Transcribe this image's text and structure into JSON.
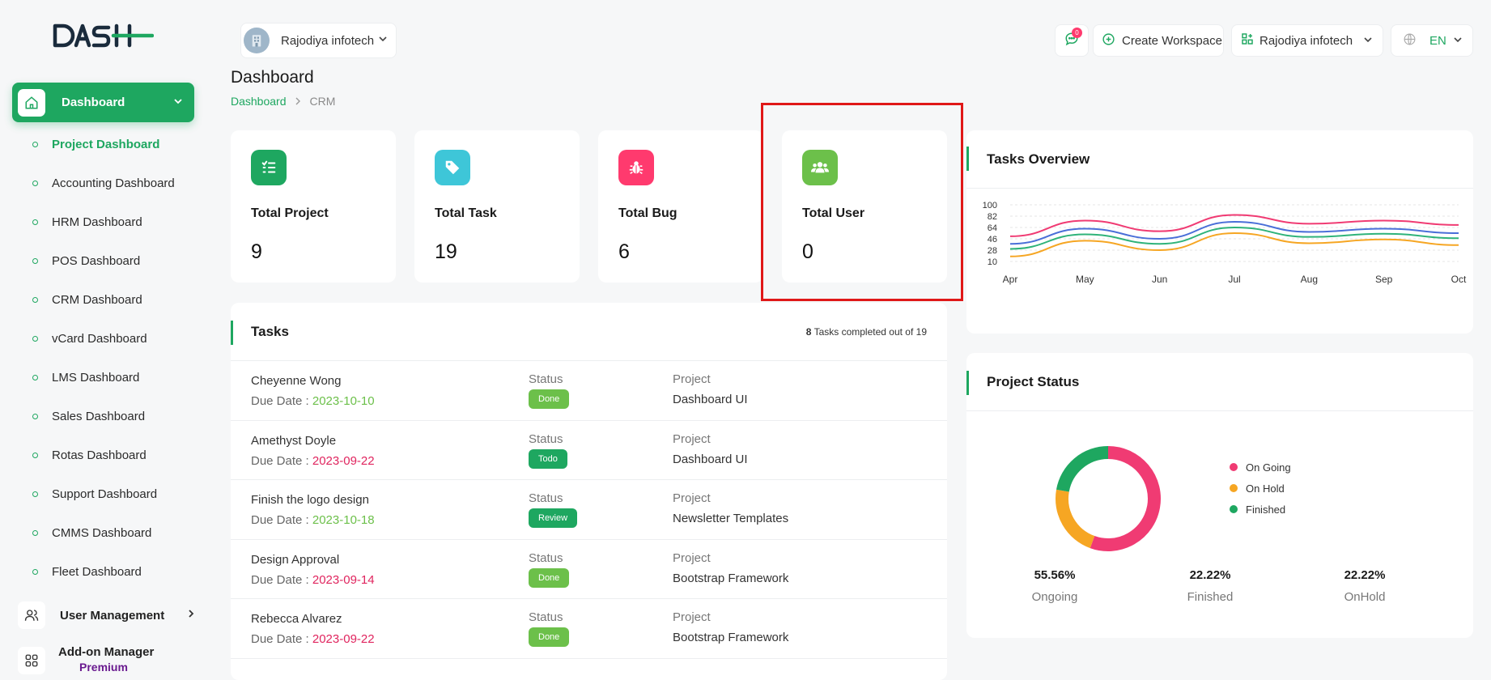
{
  "app": {
    "logo_text": "DASH"
  },
  "sidebar": {
    "active": {
      "label": "Dashboard"
    },
    "items": [
      {
        "label": "Project Dashboard",
        "active": true
      },
      {
        "label": "Accounting Dashboard"
      },
      {
        "label": "HRM Dashboard"
      },
      {
        "label": "POS Dashboard"
      },
      {
        "label": "CRM Dashboard"
      },
      {
        "label": "vCard Dashboard"
      },
      {
        "label": "LMS Dashboard"
      },
      {
        "label": "Sales Dashboard"
      },
      {
        "label": "Rotas Dashboard"
      },
      {
        "label": "Support Dashboard"
      },
      {
        "label": "CMMS Dashboard"
      },
      {
        "label": "Fleet Dashboard"
      }
    ],
    "user_management": "User Management",
    "addon": {
      "label": "Add-on Manager",
      "badge": "Premium"
    }
  },
  "header": {
    "workspace": "Rajodiya infotech",
    "chat_count": "0",
    "create_workspace": "Create Workspace",
    "workspace2": "Rajodiya infotech",
    "language": "EN"
  },
  "page": {
    "title": "Dashboard",
    "crumb1": "Dashboard",
    "crumb2": "CRM"
  },
  "stats": [
    {
      "label": "Total Project",
      "value": "9",
      "color": "#1ea760",
      "icon": "list-icon"
    },
    {
      "label": "Total Task",
      "value": "19",
      "color": "#3ec6d8",
      "icon": "tag-icon"
    },
    {
      "label": "Total Bug",
      "value": "6",
      "color": "#ff3a6e",
      "icon": "bug-icon"
    },
    {
      "label": "Total User",
      "value": "0",
      "color": "#6cc04a",
      "icon": "users-icon"
    }
  ],
  "tasks": {
    "title": "Tasks",
    "completed": "8",
    "completed_text": "Tasks completed out of 19",
    "status_label": "Status",
    "project_label": "Project",
    "due_label": "Due Date : ",
    "rows": [
      {
        "name": "Cheyenne Wong",
        "due": "2023-10-10",
        "due_color": "green",
        "status": "Done",
        "status_class": "done",
        "project": "Dashboard UI"
      },
      {
        "name": "Amethyst Doyle",
        "due": "2023-09-22",
        "due_color": "red",
        "status": "Todo",
        "status_class": "todo",
        "project": "Dashboard UI"
      },
      {
        "name": "Finish the logo design",
        "due": "2023-10-18",
        "due_color": "green",
        "status": "Review",
        "status_class": "review",
        "project": "Newsletter Templates"
      },
      {
        "name": "Design Approval",
        "due": "2023-09-14",
        "due_color": "red",
        "status": "Done",
        "status_class": "done",
        "project": "Bootstrap Framework"
      },
      {
        "name": "Rebecca Alvarez",
        "due": "2023-09-22",
        "due_color": "red",
        "status": "Done",
        "status_class": "done",
        "project": "Bootstrap Framework"
      }
    ]
  },
  "overview": {
    "title": "Tasks Overview"
  },
  "project_status": {
    "title": "Project Status",
    "legend": [
      {
        "label": "On Going",
        "color": "#f03b73"
      },
      {
        "label": "On Hold",
        "color": "#f6a623"
      },
      {
        "label": "Finished",
        "color": "#1ea760"
      }
    ],
    "percents": [
      {
        "value": "55.56%",
        "label": "Ongoing"
      },
      {
        "value": "22.22%",
        "label": "Finished"
      },
      {
        "value": "22.22%",
        "label": "OnHold"
      }
    ]
  },
  "chart_data": [
    {
      "type": "line",
      "title": "Tasks Overview",
      "x": [
        "Apr",
        "May",
        "Jun",
        "Jul",
        "Aug",
        "Sep",
        "Oct"
      ],
      "ylim": [
        10,
        100
      ],
      "yticks": [
        10,
        28,
        46,
        64,
        82,
        100
      ],
      "grid": true,
      "series": [
        {
          "values": [
            50,
            75,
            58,
            84,
            70,
            75,
            68
          ],
          "color": "#f03b73"
        },
        {
          "values": [
            38,
            62,
            46,
            73,
            57,
            62,
            55
          ],
          "color": "#4a6fd8"
        },
        {
          "values": [
            30,
            53,
            38,
            64,
            49,
            54,
            47
          ],
          "color": "#2fb37a"
        },
        {
          "values": [
            18,
            43,
            28,
            55,
            39,
            45,
            36
          ],
          "color": "#f6a623"
        }
      ]
    },
    {
      "type": "pie",
      "title": "Project Status",
      "categories": [
        "On Going",
        "On Hold",
        "Finished"
      ],
      "values": [
        55.56,
        22.22,
        22.22
      ]
    }
  ]
}
